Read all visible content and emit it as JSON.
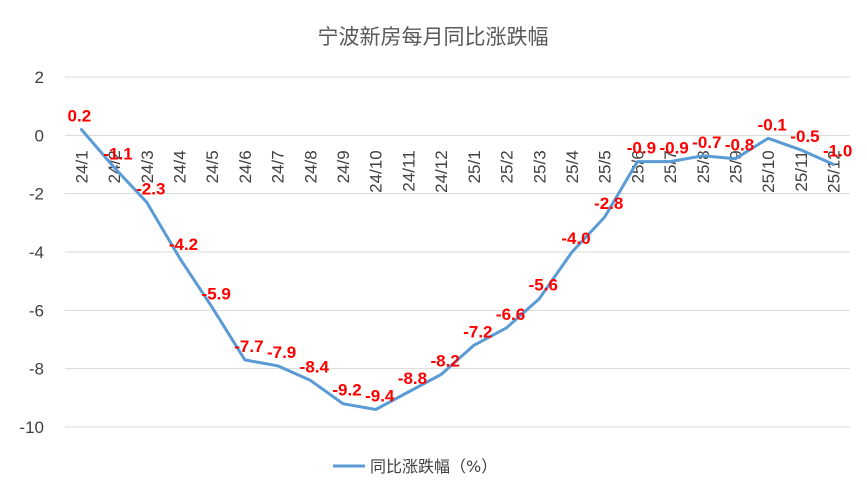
{
  "chart_data": {
    "type": "line",
    "title": "宁波新房每月同比涨跌幅",
    "categories": [
      "24/1",
      "24/2",
      "24/3",
      "24/4",
      "24/5",
      "24/6",
      "24/7",
      "24/8",
      "24/9",
      "24/10",
      "24/11",
      "24/12",
      "25/1",
      "25/2",
      "25/3",
      "25/4",
      "25/5",
      "25/6",
      "25/7",
      "25/8",
      "25/9",
      "25/10",
      "25/11",
      "25/12"
    ],
    "series": [
      {
        "name": "同比涨跌幅（%）",
        "values": [
          0.2,
          -1.1,
          -2.3,
          -4.2,
          -5.9,
          -7.7,
          -7.9,
          -8.4,
          -9.2,
          -9.4,
          -8.8,
          -8.2,
          -7.2,
          -6.6,
          -5.6,
          -4.0,
          -2.8,
          -0.9,
          -0.9,
          -0.7,
          -0.8,
          -0.1,
          -0.5,
          -1.0
        ],
        "labels": [
          "0.2",
          "-1.1",
          "-2.3",
          "-4.2",
          "-5.9",
          "-7.7",
          "-7.9",
          "-8.4",
          "-9.2",
          "-9.4",
          "-8.8",
          "-8.2",
          "-7.2",
          "-6.6",
          "-5.6",
          "-4.0",
          "-2.8",
          "-0.9",
          "-0.9",
          "-0.7",
          "-0.8",
          "-0.1",
          "-0.5",
          "-1.0"
        ],
        "color": "#5b9bd5"
      }
    ],
    "ylim": [
      -10,
      2
    ],
    "yticks": [
      "2",
      "0",
      "-2",
      "-4",
      "-6",
      "-8",
      "-10"
    ],
    "xlabel": "",
    "ylabel": "",
    "grid": true,
    "legend": "bottom",
    "data_label_color": "#ff0000"
  }
}
